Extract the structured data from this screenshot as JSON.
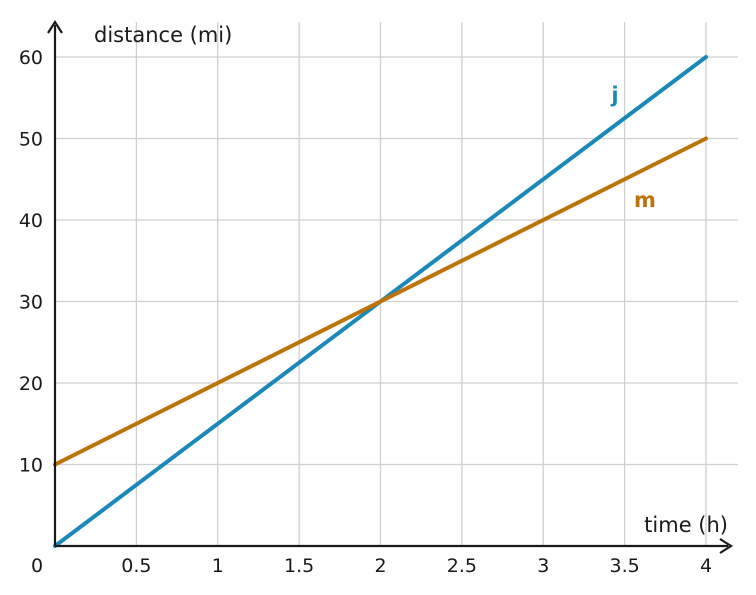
{
  "chart_data": {
    "type": "line",
    "xlabel": "time (h)",
    "ylabel": "distance (mi)",
    "xlim": [
      0,
      4
    ],
    "ylim": [
      0,
      60
    ],
    "x_ticks": [
      0.5,
      1,
      1.5,
      2,
      2.5,
      3,
      3.5,
      4
    ],
    "x_tick_labels": [
      "0.5",
      "1",
      "1.5",
      "2",
      "2.5",
      "3",
      "3.5",
      "4"
    ],
    "y_ticks": [
      10,
      20,
      30,
      40,
      50,
      60
    ],
    "y_tick_labels": [
      "10",
      "20",
      "30",
      "40",
      "50",
      "60"
    ],
    "origin_label": "0",
    "grid": true,
    "series": [
      {
        "name": "j",
        "color": "#1a88b9",
        "x": [
          0,
          4
        ],
        "y": [
          0,
          60
        ]
      },
      {
        "name": "m",
        "color": "#c0720a",
        "x": [
          0,
          4
        ],
        "y": [
          10,
          50
        ]
      }
    ]
  }
}
